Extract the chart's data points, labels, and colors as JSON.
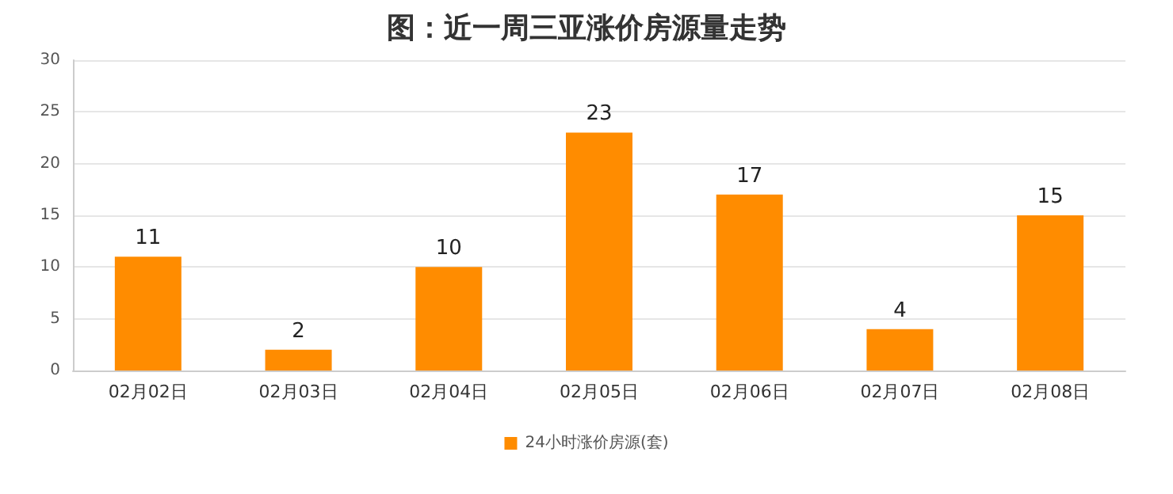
{
  "chart_data": {
    "type": "bar",
    "title": "图：近一周三亚涨价房源量走势",
    "categories": [
      "02月02日",
      "02月03日",
      "02月04日",
      "02月05日",
      "02月06日",
      "02月07日",
      "02月08日"
    ],
    "series": [
      {
        "name": "24小时涨价房源(套)",
        "color": "#ff8c00",
        "values": [
          11,
          2,
          10,
          23,
          17,
          4,
          15
        ]
      }
    ],
    "ylim": [
      0,
      30
    ],
    "yticks": [
      0,
      5,
      10,
      15,
      20,
      25,
      30
    ],
    "grid": "y",
    "legend": "bottom",
    "data_labels": true
  }
}
